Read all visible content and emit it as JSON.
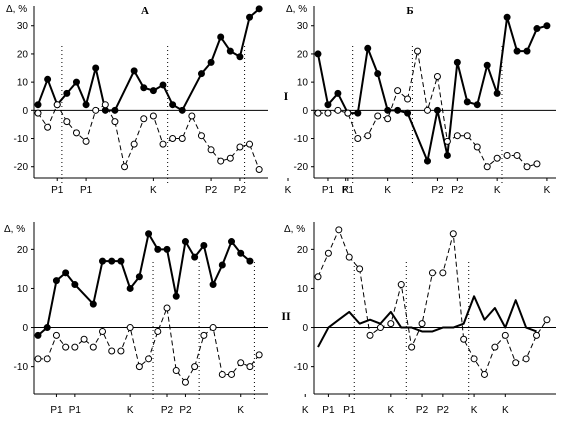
{
  "panel_titles": [
    "А",
    "Б"
  ],
  "row_labels": [
    "I",
    "II"
  ],
  "chart_data": [
    {
      "type": "line",
      "panel": "A-I",
      "title": "А",
      "ylabel": "Δ, %",
      "ylim": [
        -24,
        37
      ],
      "yticks": [
        -20,
        -10,
        0,
        10,
        20,
        30
      ],
      "x_count": 32,
      "x_tick_labels": [
        {
          "x": 2,
          "label": "P1"
        },
        {
          "x": 5,
          "label": "P1"
        },
        {
          "x": 12,
          "label": "K"
        },
        {
          "x": 18,
          "label": "P2"
        },
        {
          "x": 21,
          "label": "P2"
        },
        {
          "x": 26,
          "label": "K"
        },
        {
          "x": 32,
          "label": "K"
        }
      ],
      "dividers": [
        3,
        14,
        22
      ],
      "series": [
        {
          "style": "solid",
          "marker": "filled-circle",
          "values": [
            {
              "x": 0,
              "y": 2
            },
            {
              "x": 1,
              "y": 11
            },
            {
              "x": 2,
              "y": 2
            },
            {
              "x": 3,
              "y": 6
            },
            {
              "x": 4,
              "y": 10
            },
            {
              "x": 5,
              "y": 2
            },
            {
              "x": 6,
              "y": 15
            },
            {
              "x": 7,
              "y": 0
            },
            {
              "x": 8,
              "y": 0
            },
            {
              "x": 10,
              "y": 14
            },
            {
              "x": 11,
              "y": 8
            },
            {
              "x": 12,
              "y": 7
            },
            {
              "x": 13,
              "y": 9
            },
            {
              "x": 14,
              "y": 2
            },
            {
              "x": 15,
              "y": 0
            },
            {
              "x": 17,
              "y": 13
            },
            {
              "x": 18,
              "y": 17
            },
            {
              "x": 19,
              "y": 26
            },
            {
              "x": 20,
              "y": 21
            },
            {
              "x": 21,
              "y": 19
            },
            {
              "x": 22,
              "y": 33
            },
            {
              "x": 23,
              "y": 36
            }
          ]
        },
        {
          "style": "dashed",
          "marker": "open-circle",
          "values": [
            {
              "x": 0,
              "y": -1
            },
            {
              "x": 1,
              "y": -6
            },
            {
              "x": 2,
              "y": 2
            },
            {
              "x": 3,
              "y": -4
            },
            {
              "x": 4,
              "y": -8
            },
            {
              "x": 5,
              "y": -11
            },
            {
              "x": 6,
              "y": 0
            },
            {
              "x": 7,
              "y": 2
            },
            {
              "x": 8,
              "y": -4
            },
            {
              "x": 9,
              "y": -20
            },
            {
              "x": 10,
              "y": -12
            },
            {
              "x": 11,
              "y": -3
            },
            {
              "x": 12,
              "y": -2
            },
            {
              "x": 13,
              "y": -12
            },
            {
              "x": 14,
              "y": -10
            },
            {
              "x": 15,
              "y": -10
            },
            {
              "x": 16,
              "y": -2
            },
            {
              "x": 17,
              "y": -9
            },
            {
              "x": 18,
              "y": -14
            },
            {
              "x": 19,
              "y": -18
            },
            {
              "x": 20,
              "y": -17
            },
            {
              "x": 21,
              "y": -13
            },
            {
              "x": 22,
              "y": -12
            },
            {
              "x": 23,
              "y": -21
            }
          ]
        }
      ]
    },
    {
      "type": "line",
      "panel": "Б-I",
      "title": "Б",
      "ylabel": "Δ, %",
      "ylim": [
        -24,
        37
      ],
      "yticks": [
        -20,
        -10,
        0,
        10,
        20,
        30
      ],
      "x_count": 32,
      "x_tick_labels": [
        {
          "x": 1,
          "label": "P1"
        },
        {
          "x": 3,
          "label": "P1"
        },
        {
          "x": 7,
          "label": "K"
        },
        {
          "x": 12,
          "label": "P2"
        },
        {
          "x": 14,
          "label": "P2"
        },
        {
          "x": 18,
          "label": "K"
        },
        {
          "x": 23,
          "label": "K"
        }
      ],
      "dividers": [
        4,
        10,
        19
      ],
      "series": [
        {
          "style": "solid",
          "marker": "filled-circle",
          "values": [
            {
              "x": 0,
              "y": 20
            },
            {
              "x": 1,
              "y": 2
            },
            {
              "x": 2,
              "y": 6
            },
            {
              "x": 3,
              "y": -1
            },
            {
              "x": 4,
              "y": -1
            },
            {
              "x": 5,
              "y": 22
            },
            {
              "x": 6,
              "y": 13
            },
            {
              "x": 7,
              "y": 0
            },
            {
              "x": 8,
              "y": 0
            },
            {
              "x": 9,
              "y": -1
            },
            {
              "x": 11,
              "y": -18
            },
            {
              "x": 12,
              "y": 0
            },
            {
              "x": 13,
              "y": -16
            },
            {
              "x": 14,
              "y": 17
            },
            {
              "x": 15,
              "y": 3
            },
            {
              "x": 16,
              "y": 2
            },
            {
              "x": 17,
              "y": 16
            },
            {
              "x": 18,
              "y": 6
            },
            {
              "x": 19,
              "y": 33
            },
            {
              "x": 20,
              "y": 21
            },
            {
              "x": 21,
              "y": 21
            },
            {
              "x": 22,
              "y": 29
            },
            {
              "x": 23,
              "y": 30
            }
          ]
        },
        {
          "style": "dashed",
          "marker": "open-circle",
          "values": [
            {
              "x": 0,
              "y": -1
            },
            {
              "x": 1,
              "y": -1
            },
            {
              "x": 2,
              "y": 0
            },
            {
              "x": 3,
              "y": -1
            },
            {
              "x": 4,
              "y": -10
            },
            {
              "x": 5,
              "y": -9
            },
            {
              "x": 6,
              "y": -2
            },
            {
              "x": 7,
              "y": -3
            },
            {
              "x": 8,
              "y": 7
            },
            {
              "x": 9,
              "y": 4
            },
            {
              "x": 10,
              "y": 21
            },
            {
              "x": 11,
              "y": 0
            },
            {
              "x": 12,
              "y": 12
            },
            {
              "x": 13,
              "y": -11
            },
            {
              "x": 14,
              "y": -9
            },
            {
              "x": 15,
              "y": -9
            },
            {
              "x": 16,
              "y": -13
            },
            {
              "x": 17,
              "y": -20
            },
            {
              "x": 18,
              "y": -17
            },
            {
              "x": 19,
              "y": -16
            },
            {
              "x": 20,
              "y": -16
            },
            {
              "x": 21,
              "y": -20
            },
            {
              "x": 22,
              "y": -19
            }
          ]
        }
      ]
    },
    {
      "type": "line",
      "panel": "A-II",
      "title": "",
      "ylabel": "Δ, %",
      "ylim": [
        -17,
        27
      ],
      "yticks": [
        -10,
        0,
        10,
        20
      ],
      "x_count": 32,
      "x_tick_labels": [
        {
          "x": 2,
          "label": "P1"
        },
        {
          "x": 4,
          "label": "P1"
        },
        {
          "x": 10,
          "label": "K"
        },
        {
          "x": 14,
          "label": "P2"
        },
        {
          "x": 16,
          "label": "P2"
        },
        {
          "x": 22,
          "label": "K"
        },
        {
          "x": 29,
          "label": "K"
        }
      ],
      "dividers": [
        13,
        18,
        24
      ],
      "series": [
        {
          "style": "solid",
          "marker": "filled-circle",
          "values": [
            {
              "x": 0,
              "y": -2
            },
            {
              "x": 1,
              "y": 0
            },
            {
              "x": 2,
              "y": 12
            },
            {
              "x": 3,
              "y": 14
            },
            {
              "x": 4,
              "y": 11
            },
            {
              "x": 6,
              "y": 6
            },
            {
              "x": 7,
              "y": 17
            },
            {
              "x": 8,
              "y": 17
            },
            {
              "x": 9,
              "y": 17
            },
            {
              "x": 10,
              "y": 10
            },
            {
              "x": 11,
              "y": 13
            },
            {
              "x": 12,
              "y": 24
            },
            {
              "x": 13,
              "y": 20
            },
            {
              "x": 14,
              "y": 20
            },
            {
              "x": 15,
              "y": 8
            },
            {
              "x": 16,
              "y": 22
            },
            {
              "x": 17,
              "y": 18
            },
            {
              "x": 18,
              "y": 21
            },
            {
              "x": 19,
              "y": 11
            },
            {
              "x": 20,
              "y": 16
            },
            {
              "x": 21,
              "y": 22
            },
            {
              "x": 22,
              "y": 19
            },
            {
              "x": 23,
              "y": 17
            }
          ]
        },
        {
          "style": "dashed",
          "marker": "open-circle",
          "values": [
            {
              "x": 0,
              "y": -8
            },
            {
              "x": 1,
              "y": -8
            },
            {
              "x": 2,
              "y": -2
            },
            {
              "x": 3,
              "y": -5
            },
            {
              "x": 4,
              "y": -5
            },
            {
              "x": 5,
              "y": -3
            },
            {
              "x": 6,
              "y": -5
            },
            {
              "x": 7,
              "y": -1
            },
            {
              "x": 8,
              "y": -6
            },
            {
              "x": 9,
              "y": -6
            },
            {
              "x": 10,
              "y": 0
            },
            {
              "x": 11,
              "y": -10
            },
            {
              "x": 12,
              "y": -8
            },
            {
              "x": 13,
              "y": -1
            },
            {
              "x": 14,
              "y": 5
            },
            {
              "x": 15,
              "y": -11
            },
            {
              "x": 16,
              "y": -14
            },
            {
              "x": 17,
              "y": -10
            },
            {
              "x": 18,
              "y": -2
            },
            {
              "x": 19,
              "y": 0
            },
            {
              "x": 20,
              "y": -12
            },
            {
              "x": 21,
              "y": -12
            },
            {
              "x": 22,
              "y": -9
            },
            {
              "x": 23,
              "y": -10
            },
            {
              "x": 24,
              "y": -7
            }
          ]
        }
      ]
    },
    {
      "type": "line",
      "panel": "Б-II",
      "title": "",
      "ylabel": "Δ, %",
      "ylim": [
        -17,
        27
      ],
      "yticks": [
        -10,
        0,
        10,
        20
      ],
      "x_count": 32,
      "x_tick_labels": [
        {
          "x": 1,
          "label": "P1"
        },
        {
          "x": 3,
          "label": "P1"
        },
        {
          "x": 7,
          "label": "K"
        },
        {
          "x": 10,
          "label": "P2"
        },
        {
          "x": 12,
          "label": "P2"
        },
        {
          "x": 15,
          "label": "K"
        },
        {
          "x": 18,
          "label": "K"
        }
      ],
      "dividers": [
        4,
        9,
        15
      ],
      "series": [
        {
          "style": "solid",
          "marker": "none",
          "values": [
            {
              "x": 0,
              "y": -5
            },
            {
              "x": 1,
              "y": 0
            },
            {
              "x": 2,
              "y": 2
            },
            {
              "x": 3,
              "y": 4
            },
            {
              "x": 4,
              "y": 1
            },
            {
              "x": 5,
              "y": 2
            },
            {
              "x": 6,
              "y": 1
            },
            {
              "x": 7,
              "y": 4
            },
            {
              "x": 8,
              "y": 0
            },
            {
              "x": 9,
              "y": 0
            },
            {
              "x": 10,
              "y": -1
            },
            {
              "x": 11,
              "y": -1
            },
            {
              "x": 12,
              "y": 0
            },
            {
              "x": 13,
              "y": 0
            },
            {
              "x": 14,
              "y": 1
            },
            {
              "x": 15,
              "y": 8
            },
            {
              "x": 16,
              "y": 2
            },
            {
              "x": 17,
              "y": 5
            },
            {
              "x": 18,
              "y": 0
            },
            {
              "x": 19,
              "y": 7
            },
            {
              "x": 20,
              "y": 0
            },
            {
              "x": 21,
              "y": -1
            }
          ]
        },
        {
          "style": "dashed",
          "marker": "open-circle",
          "values": [
            {
              "x": 0,
              "y": 13
            },
            {
              "x": 1,
              "y": 19
            },
            {
              "x": 2,
              "y": 25
            },
            {
              "x": 3,
              "y": 18
            },
            {
              "x": 4,
              "y": 15
            },
            {
              "x": 5,
              "y": -2
            },
            {
              "x": 6,
              "y": 0
            },
            {
              "x": 7,
              "y": 1
            },
            {
              "x": 8,
              "y": 11
            },
            {
              "x": 9,
              "y": -5
            },
            {
              "x": 10,
              "y": 1
            },
            {
              "x": 11,
              "y": 14
            },
            {
              "x": 12,
              "y": 14
            },
            {
              "x": 13,
              "y": 24
            },
            {
              "x": 14,
              "y": -3
            },
            {
              "x": 15,
              "y": -8
            },
            {
              "x": 16,
              "y": -12
            },
            {
              "x": 17,
              "y": -5
            },
            {
              "x": 18,
              "y": -2
            },
            {
              "x": 19,
              "y": -9
            },
            {
              "x": 20,
              "y": -8
            },
            {
              "x": 21,
              "y": -2
            },
            {
              "x": 22,
              "y": 2
            }
          ]
        }
      ]
    }
  ]
}
